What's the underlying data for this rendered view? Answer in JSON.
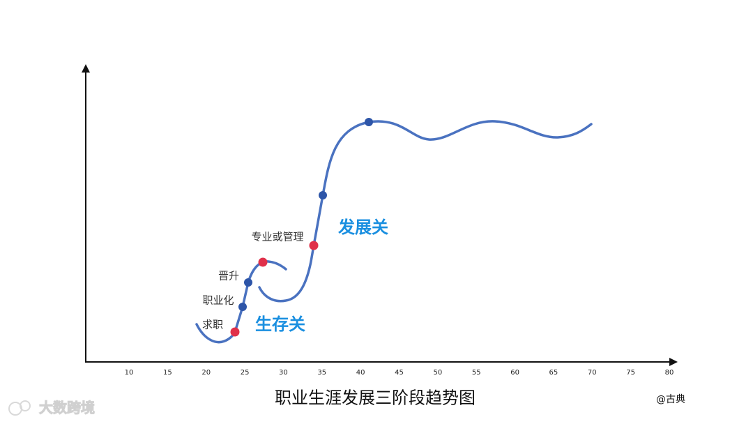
{
  "title": "职业生涯发展三阶段趋势图",
  "author": "@古典",
  "watermark": "大数跨境",
  "xticks": [
    10,
    15,
    20,
    25,
    30,
    35,
    40,
    45,
    50,
    55,
    60,
    65,
    70,
    75,
    80
  ],
  "labels": [
    "求职",
    "职业化",
    "晋升",
    "专业或管理"
  ],
  "gates": [
    "生存关",
    "发展关"
  ]
}
